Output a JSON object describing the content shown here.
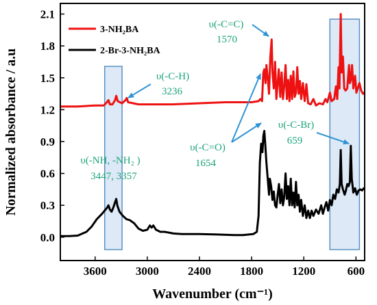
{
  "chart_data": {
    "type": "line",
    "xlabel": "Wavenumber (cm⁻¹)",
    "ylabel": "Normalized absorbance / a.u",
    "xlim": [
      4000,
      500
    ],
    "ylim": [
      -0.22,
      2.2
    ],
    "x_reversed": true,
    "xticks": [
      3600,
      3000,
      2400,
      1800,
      1200,
      600
    ],
    "yticks": [
      0.0,
      0.3,
      0.6,
      0.9,
      1.2,
      1.5,
      1.8,
      2.1
    ],
    "ytick_labels": [
      "0.0",
      "0.3",
      "0.6",
      "0.9",
      "1.2",
      "1.5",
      "1.8",
      "2.1"
    ],
    "xtick_labels": [
      "3600",
      "3000",
      "2400",
      "1800",
      "1200",
      "600"
    ],
    "legend_position": "top-left",
    "highlight_regions": [
      [
        3490,
        3290
      ],
      [
        900,
        560
      ]
    ],
    "series": [
      {
        "name": "3-NH₂BA",
        "color": "#ee1111",
        "points": [
          [
            4000,
            1.23
          ],
          [
            3800,
            1.23
          ],
          [
            3600,
            1.24
          ],
          [
            3500,
            1.24
          ],
          [
            3465,
            1.27
          ],
          [
            3447,
            1.29
          ],
          [
            3430,
            1.25
          ],
          [
            3400,
            1.25
          ],
          [
            3370,
            1.29
          ],
          [
            3357,
            1.33
          ],
          [
            3340,
            1.28
          ],
          [
            3290,
            1.26
          ],
          [
            3250,
            1.29
          ],
          [
            3236,
            1.31
          ],
          [
            3220,
            1.27
          ],
          [
            3100,
            1.25
          ],
          [
            3000,
            1.25
          ],
          [
            2900,
            1.25
          ],
          [
            2700,
            1.25
          ],
          [
            2400,
            1.26
          ],
          [
            2100,
            1.27
          ],
          [
            1800,
            1.27
          ],
          [
            1720,
            1.28
          ],
          [
            1700,
            1.3
          ],
          [
            1680,
            1.28
          ],
          [
            1665,
            1.55
          ],
          [
            1654,
            1.58
          ],
          [
            1640,
            1.45
          ],
          [
            1630,
            1.62
          ],
          [
            1615,
            1.5
          ],
          [
            1600,
            1.35
          ],
          [
            1585,
            1.7
          ],
          [
            1570,
            1.86
          ],
          [
            1560,
            1.55
          ],
          [
            1545,
            1.4
          ],
          [
            1530,
            1.65
          ],
          [
            1515,
            1.3
          ],
          [
            1500,
            1.45
          ],
          [
            1488,
            1.58
          ],
          [
            1470,
            1.32
          ],
          [
            1455,
            1.55
          ],
          [
            1440,
            1.3
          ],
          [
            1425,
            1.42
          ],
          [
            1410,
            1.62
          ],
          [
            1395,
            1.3
          ],
          [
            1380,
            1.48
          ],
          [
            1365,
            1.28
          ],
          [
            1350,
            1.52
          ],
          [
            1335,
            1.3
          ],
          [
            1320,
            1.56
          ],
          [
            1305,
            1.32
          ],
          [
            1290,
            1.36
          ],
          [
            1275,
            1.6
          ],
          [
            1260,
            1.35
          ],
          [
            1245,
            1.47
          ],
          [
            1230,
            1.3
          ],
          [
            1210,
            1.45
          ],
          [
            1190,
            1.28
          ],
          [
            1170,
            1.44
          ],
          [
            1150,
            1.26
          ],
          [
            1120,
            1.25
          ],
          [
            1090,
            1.3
          ],
          [
            1060,
            1.24
          ],
          [
            1020,
            1.26
          ],
          [
            980,
            1.25
          ],
          [
            950,
            1.3
          ],
          [
            930,
            1.27
          ],
          [
            900,
            1.36
          ],
          [
            880,
            1.28
          ],
          [
            850,
            1.3
          ],
          [
            830,
            1.42
          ],
          [
            815,
            1.3
          ],
          [
            800,
            1.6
          ],
          [
            790,
            1.4
          ],
          [
            775,
            2.1
          ],
          [
            765,
            1.55
          ],
          [
            750,
            1.7
          ],
          [
            735,
            1.4
          ],
          [
            720,
            1.38
          ],
          [
            700,
            1.4
          ],
          [
            680,
            1.62
          ],
          [
            670,
            1.45
          ],
          [
            659,
            1.48
          ],
          [
            645,
            1.62
          ],
          [
            630,
            1.4
          ],
          [
            610,
            1.52
          ],
          [
            595,
            1.36
          ],
          [
            580,
            1.4
          ],
          [
            560,
            1.45
          ],
          [
            540,
            1.38
          ],
          [
            520,
            1.35
          ],
          [
            500,
            1.36
          ]
        ]
      },
      {
        "name": "2-Br-3-NH₂BA",
        "color": "#000000",
        "points": [
          [
            4000,
            0.01
          ],
          [
            3900,
            0.01
          ],
          [
            3800,
            0.015
          ],
          [
            3700,
            0.05
          ],
          [
            3640,
            0.1
          ],
          [
            3580,
            0.17
          ],
          [
            3520,
            0.22
          ],
          [
            3480,
            0.26
          ],
          [
            3460,
            0.28
          ],
          [
            3447,
            0.3
          ],
          [
            3430,
            0.26
          ],
          [
            3410,
            0.24
          ],
          [
            3390,
            0.28
          ],
          [
            3370,
            0.33
          ],
          [
            3357,
            0.36
          ],
          [
            3345,
            0.3
          ],
          [
            3320,
            0.24
          ],
          [
            3280,
            0.2
          ],
          [
            3240,
            0.17
          ],
          [
            3200,
            0.16
          ],
          [
            3150,
            0.13
          ],
          [
            3100,
            0.08
          ],
          [
            3050,
            0.06
          ],
          [
            3000,
            0.07
          ],
          [
            2970,
            0.11
          ],
          [
            2950,
            0.09
          ],
          [
            2930,
            0.11
          ],
          [
            2900,
            0.07
          ],
          [
            2850,
            0.05
          ],
          [
            2800,
            0.05
          ],
          [
            2700,
            0.035
          ],
          [
            2600,
            0.03
          ],
          [
            2400,
            0.03
          ],
          [
            2200,
            0.025
          ],
          [
            2000,
            0.02
          ],
          [
            1900,
            0.02
          ],
          [
            1780,
            0.03
          ],
          [
            1740,
            0.05
          ],
          [
            1720,
            0.2
          ],
          [
            1705,
            0.7
          ],
          [
            1690,
            0.88
          ],
          [
            1675,
            0.8
          ],
          [
            1665,
            0.95
          ],
          [
            1654,
            1.0
          ],
          [
            1645,
            0.9
          ],
          [
            1630,
            0.7
          ],
          [
            1615,
            0.55
          ],
          [
            1600,
            0.4
          ],
          [
            1590,
            0.55
          ],
          [
            1575,
            0.48
          ],
          [
            1560,
            0.35
          ],
          [
            1545,
            0.43
          ],
          [
            1530,
            0.3
          ],
          [
            1515,
            0.28
          ],
          [
            1500,
            0.4
          ],
          [
            1485,
            0.5
          ],
          [
            1470,
            0.32
          ],
          [
            1455,
            0.45
          ],
          [
            1440,
            0.3
          ],
          [
            1425,
            0.38
          ],
          [
            1410,
            0.6
          ],
          [
            1395,
            0.36
          ],
          [
            1380,
            0.48
          ],
          [
            1365,
            0.3
          ],
          [
            1350,
            0.55
          ],
          [
            1335,
            0.3
          ],
          [
            1320,
            0.42
          ],
          [
            1305,
            0.28
          ],
          [
            1290,
            0.52
          ],
          [
            1275,
            0.3
          ],
          [
            1260,
            0.4
          ],
          [
            1245,
            0.24
          ],
          [
            1230,
            0.35
          ],
          [
            1210,
            0.2
          ],
          [
            1190,
            0.3
          ],
          [
            1170,
            0.18
          ],
          [
            1150,
            0.25
          ],
          [
            1130,
            0.18
          ],
          [
            1110,
            0.25
          ],
          [
            1090,
            0.2
          ],
          [
            1060,
            0.26
          ],
          [
            1030,
            0.22
          ],
          [
            1000,
            0.3
          ],
          [
            980,
            0.22
          ],
          [
            960,
            0.28
          ],
          [
            940,
            0.33
          ],
          [
            920,
            0.25
          ],
          [
            900,
            0.35
          ],
          [
            880,
            0.3
          ],
          [
            860,
            0.4
          ],
          [
            840,
            0.36
          ],
          [
            820,
            0.45
          ],
          [
            800,
            0.42
          ],
          [
            785,
            0.5
          ],
          [
            775,
            0.82
          ],
          [
            765,
            0.5
          ],
          [
            750,
            0.45
          ],
          [
            730,
            0.4
          ],
          [
            715,
            0.44
          ],
          [
            700,
            0.5
          ],
          [
            685,
            0.48
          ],
          [
            670,
            0.52
          ],
          [
            659,
            0.86
          ],
          [
            648,
            0.55
          ],
          [
            630,
            0.42
          ],
          [
            610,
            0.46
          ],
          [
            590,
            0.4
          ],
          [
            570,
            0.44
          ],
          [
            550,
            0.45
          ],
          [
            530,
            0.44
          ],
          [
            510,
            0.46
          ],
          [
            500,
            0.46
          ]
        ]
      }
    ],
    "annotations": [
      {
        "label": "υ(-C-H)",
        "value": "3236"
      },
      {
        "label": "υ(-C=C)",
        "value": "1570"
      },
      {
        "label": "υ(-C=O)",
        "value": "1654"
      },
      {
        "label": "υ(-C-Br)",
        "value": "659"
      },
      {
        "label": "υ(-NH, -NH₂ )",
        "value": "3447, 3357"
      }
    ]
  }
}
